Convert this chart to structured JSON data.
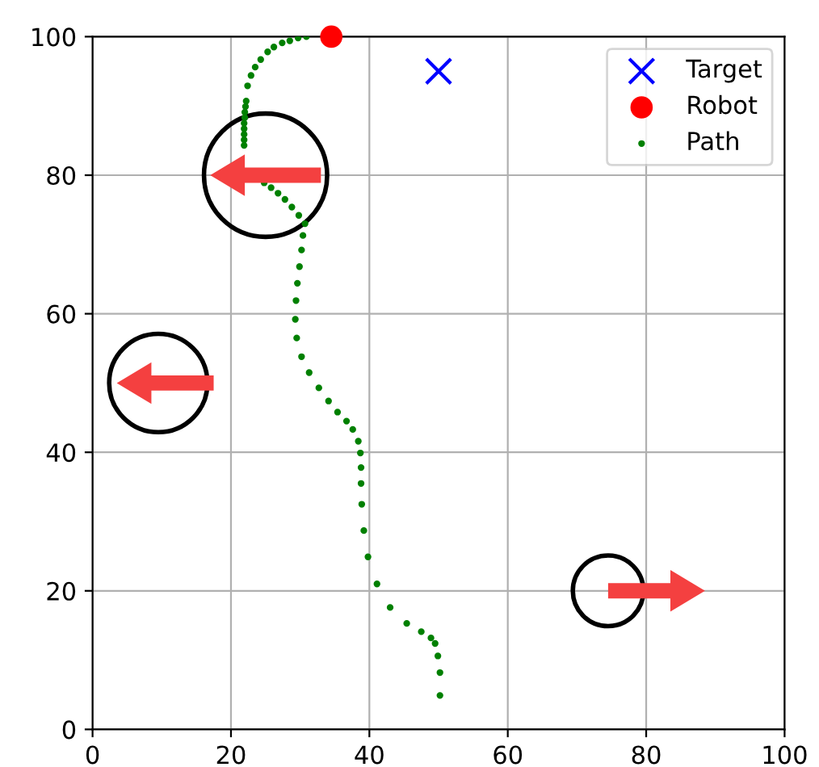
{
  "chart_data": {
    "type": "scatter",
    "xlim": [
      0,
      100
    ],
    "ylim": [
      0,
      100
    ],
    "xticks": [
      0,
      20,
      40,
      60,
      80,
      100
    ],
    "yticks": [
      0,
      20,
      40,
      60,
      80,
      100
    ],
    "grid": true,
    "legend": "top right",
    "series": [
      {
        "name": "Target",
        "color": "#0000ff",
        "marker": "cross",
        "x": [
          50
        ],
        "values": [
          95
        ]
      },
      {
        "name": "Robot",
        "color": "#ff0000",
        "marker": "circle",
        "x": [
          34.5
        ],
        "values": [
          100
        ]
      },
      {
        "name": "Path",
        "color": "#008000",
        "marker": "circle",
        "x": [
          50.2,
          50.2,
          49.9,
          49.5,
          48.9,
          47.5,
          45.4,
          43.0,
          41.1,
          39.8,
          39.2,
          38.9,
          38.8,
          38.8,
          38.7,
          38.4,
          37.6,
          36.7,
          35.4,
          34.1,
          32.7,
          31.3,
          30.2,
          29.5,
          29.3,
          29.4,
          29.6,
          29.9,
          30.2,
          30.4,
          30.7,
          29.8,
          28.8,
          27.8,
          26.8,
          25.8,
          24.8,
          21.9,
          21.9,
          21.9,
          21.9,
          21.9,
          22.0,
          22.0,
          22.1,
          22.2,
          22.4,
          22.9,
          23.5,
          24.3,
          25.3,
          26.2,
          27.4,
          28.5,
          29.7,
          30.9
        ],
        "values": [
          4.9,
          8.2,
          10.6,
          12.4,
          13.2,
          14.1,
          15.3,
          17.6,
          21.0,
          24.9,
          28.7,
          32.5,
          35.5,
          37.8,
          39.9,
          41.6,
          43.3,
          44.5,
          45.8,
          47.4,
          49.3,
          51.5,
          53.8,
          56.5,
          59.2,
          61.9,
          64.4,
          66.8,
          69.2,
          71.3,
          73.0,
          74.2,
          75.4,
          76.5,
          77.4,
          78.2,
          78.9,
          84.3,
          85.1,
          85.9,
          86.7,
          87.5,
          88.3,
          89.1,
          89.9,
          90.7,
          92.9,
          94.4,
          95.6,
          96.7,
          97.8,
          98.5,
          99.1,
          99.4,
          99.8,
          100.0
        ]
      }
    ]
  }
}
